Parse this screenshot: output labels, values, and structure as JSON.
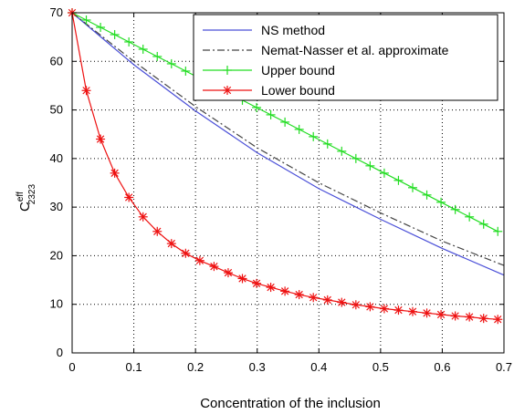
{
  "chart_data": {
    "type": "line",
    "xlabel": "Concentration of the inclusion",
    "ylabel": {
      "main": "C",
      "sup": "eff",
      "sub": "2323"
    },
    "xlim": [
      0,
      0.7
    ],
    "ylim": [
      0,
      70
    ],
    "xticks": [
      "0",
      "0.1",
      "0.2",
      "0.3",
      "0.4",
      "0.5",
      "0.6",
      "0.7"
    ],
    "yticks": [
      "0",
      "10",
      "20",
      "30",
      "40",
      "50",
      "60",
      "70"
    ],
    "grid": true,
    "legend_position": "top-right",
    "series": [
      {
        "name": "NS method",
        "color": "#4a4fd8",
        "style": "solid",
        "marker": "none",
        "x": [
          0,
          0.1,
          0.2,
          0.3,
          0.4,
          0.5,
          0.6,
          0.7
        ],
        "y": [
          70,
          59.3,
          49.8,
          41.2,
          33.8,
          27.5,
          21.5,
          16
        ]
      },
      {
        "name": "Nemat-Nasser et al. approximate",
        "color": "#444444",
        "style": "dashdot",
        "marker": "none",
        "x": [
          0,
          0.1,
          0.2,
          0.3,
          0.4,
          0.5,
          0.6,
          0.7
        ],
        "y": [
          70,
          60,
          50.7,
          42.2,
          35,
          28.8,
          23,
          18
        ]
      },
      {
        "name": "Upper bound",
        "color": "#22dd22",
        "style": "solid",
        "marker": "plus",
        "x": [
          0,
          0.023,
          0.046,
          0.069,
          0.092,
          0.115,
          0.138,
          0.161,
          0.184,
          0.207,
          0.23,
          0.253,
          0.276,
          0.299,
          0.322,
          0.345,
          0.368,
          0.391,
          0.414,
          0.437,
          0.46,
          0.483,
          0.506,
          0.529,
          0.552,
          0.575,
          0.598,
          0.621,
          0.644,
          0.667,
          0.69
        ],
        "y": [
          70,
          68.5,
          67,
          65.5,
          64,
          62.5,
          61,
          59.5,
          58,
          56.5,
          55,
          53.5,
          52,
          50.5,
          49,
          47.5,
          46,
          44.5,
          43,
          41.5,
          40,
          38.5,
          37,
          35.5,
          34,
          32.5,
          31,
          29.5,
          28,
          26.5,
          25
        ]
      },
      {
        "name": "Lower bound",
        "color": "#ee1111",
        "style": "solid",
        "marker": "star",
        "x": [
          0,
          0.023,
          0.046,
          0.069,
          0.092,
          0.115,
          0.138,
          0.161,
          0.184,
          0.207,
          0.23,
          0.253,
          0.276,
          0.299,
          0.322,
          0.345,
          0.368,
          0.391,
          0.414,
          0.437,
          0.46,
          0.483,
          0.506,
          0.529,
          0.552,
          0.575,
          0.598,
          0.621,
          0.644,
          0.667,
          0.69
        ],
        "y": [
          70,
          54,
          44,
          37,
          32,
          28,
          25,
          22.5,
          20.5,
          19,
          17.8,
          16.5,
          15.3,
          14.3,
          13.5,
          12.7,
          12,
          11.4,
          10.9,
          10.4,
          9.9,
          9.5,
          9.1,
          8.8,
          8.5,
          8.2,
          7.9,
          7.6,
          7.4,
          7.1,
          6.9
        ]
      }
    ]
  }
}
